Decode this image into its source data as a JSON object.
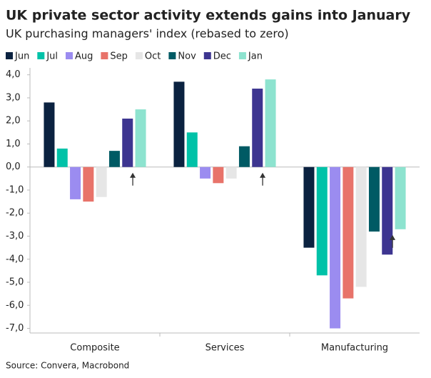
{
  "chart_data": {
    "type": "bar",
    "title": "UK private sector activity extends gains into January",
    "subtitle": "UK purchasing managers' index (rebased to zero)",
    "source": "Source: Convera, Macrobond",
    "categories": [
      "Composite",
      "Services",
      "Manufacturing"
    ],
    "series": [
      {
        "name": "Jun",
        "color": "#0b2240",
        "values": [
          2.8,
          3.7,
          -3.5
        ]
      },
      {
        "name": "Jul",
        "color": "#00c2a8",
        "values": [
          0.8,
          1.5,
          -4.7
        ]
      },
      {
        "name": "Aug",
        "color": "#9b8cf0",
        "values": [
          -1.4,
          -0.5,
          -7.0
        ]
      },
      {
        "name": "Sep",
        "color": "#e8736a",
        "values": [
          -1.5,
          -0.7,
          -5.7
        ]
      },
      {
        "name": "Oct",
        "color": "#e6e6e6",
        "values": [
          -1.3,
          -0.5,
          -5.2
        ]
      },
      {
        "name": "Nov",
        "color": "#005a64",
        "values": [
          0.7,
          0.9,
          -2.8
        ]
      },
      {
        "name": "Dec",
        "color": "#3d3590",
        "values": [
          2.1,
          3.4,
          -3.8
        ]
      },
      {
        "name": "Jan",
        "color": "#8de3cf",
        "values": [
          2.5,
          3.8,
          -2.7
        ]
      }
    ],
    "ylim": [
      -7.2,
      4.3
    ],
    "yticks": [
      {
        "value": 4,
        "label": "4,0"
      },
      {
        "value": 3,
        "label": "3,0"
      },
      {
        "value": 2,
        "label": "2,0"
      },
      {
        "value": 1,
        "label": "1,0"
      },
      {
        "value": 0,
        "label": "0,0"
      },
      {
        "value": -1,
        "label": "-1,0"
      },
      {
        "value": -2,
        "label": "-2,0"
      },
      {
        "value": -3,
        "label": "-3,0"
      },
      {
        "value": -4,
        "label": "-4,0"
      },
      {
        "value": -5,
        "label": "-5,0"
      },
      {
        "value": -6,
        "label": "-6,0"
      },
      {
        "value": -7,
        "label": "-7,0"
      }
    ]
  }
}
